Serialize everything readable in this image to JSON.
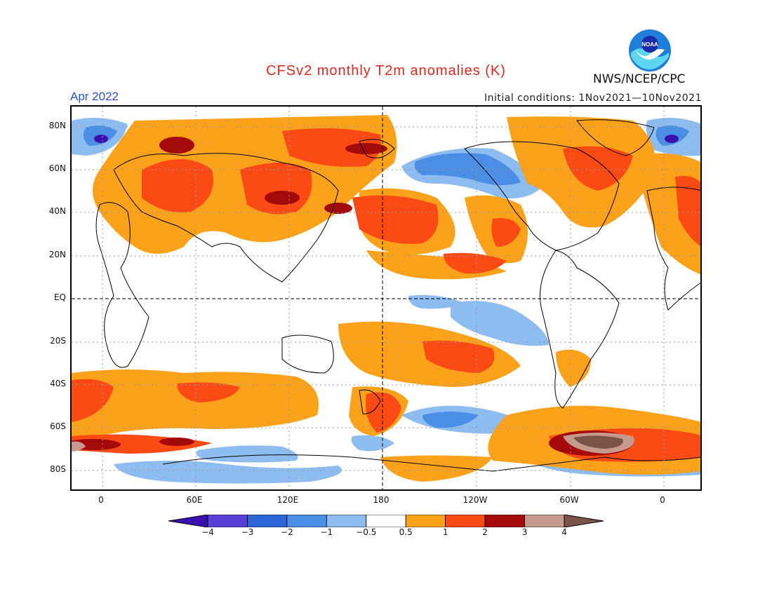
{
  "title": "CFSv2 monthly T2m anomalies (K)",
  "month_label": "Apr 2022",
  "initial_conditions": "Initial conditions: 1Nov2021—10Nov2021",
  "agency": "NWS/NCEP/CPC",
  "logo_text": "NOAA",
  "lat_labels": [
    "80N",
    "60N",
    "40N",
    "20N",
    "EQ",
    "20S",
    "40S",
    "60S",
    "80S"
  ],
  "lon_labels": [
    "0",
    "60E",
    "120E",
    "180",
    "120W",
    "60W",
    "0"
  ],
  "colorbar": {
    "labels": [
      "−4",
      "−3",
      "−2",
      "−1",
      "−0.5",
      "0.5",
      "1",
      "2",
      "3",
      "4"
    ],
    "colors": [
      "#3a10b0",
      "#5a3fd6",
      "#2c66d6",
      "#4b8ee6",
      "#8cbcf0",
      "#ffffff",
      "#fba21a",
      "#fb4a14",
      "#a40a0a",
      "#c59a8c",
      "#7a5448"
    ]
  },
  "legend_colors": {
    "blue_minus4": "#3a10b0",
    "blue_minus3": "#5a3fd6",
    "blue_minus2": "#2c66d6",
    "blue_minus1": "#4b8ee6",
    "blue_minus05": "#8cbcf0",
    "neutral": "#ffffff",
    "orange_05": "#fba21a",
    "red_1": "#fb4a14",
    "darkred_2": "#a40a0a",
    "tan_3": "#c59a8c",
    "brown_4": "#7a5448"
  }
}
